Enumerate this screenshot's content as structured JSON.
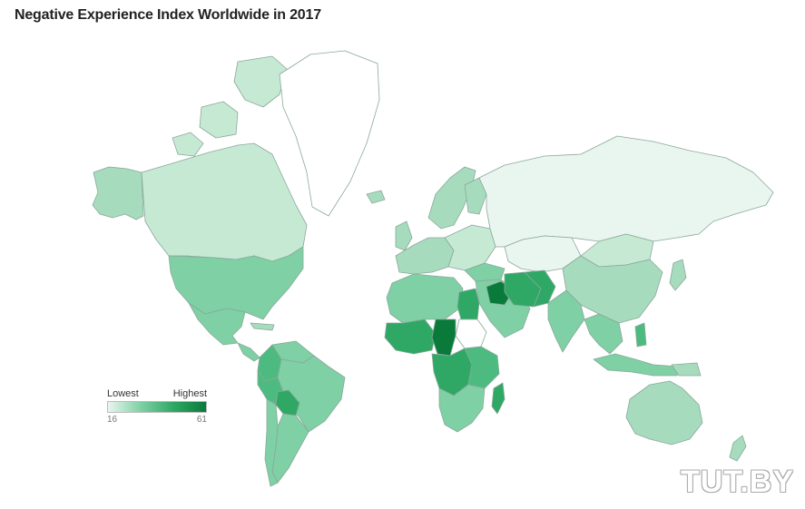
{
  "title": "Negative Experience Index Worldwide in 2017",
  "legend": {
    "low_label": "Lowest",
    "high_label": "Highest",
    "min": "16",
    "max": "61"
  },
  "watermark": "TUT.BY",
  "colors": {
    "lowest": "#e9f6ef",
    "low": "#c6e9d4",
    "mid_low": "#a6dcbd",
    "mid": "#7fd0a4",
    "mid_high": "#4dbb80",
    "high": "#2fa866",
    "highest": "#0a7a3a",
    "no_data": "#ffffff",
    "border": "#8aa89a"
  },
  "regions": [
    {
      "name": "Alaska",
      "level": "mid_low"
    },
    {
      "name": "Canada",
      "level": "low"
    },
    {
      "name": "Greenland",
      "level": "no_data"
    },
    {
      "name": "United States",
      "level": "mid"
    },
    {
      "name": "Mexico",
      "level": "mid"
    },
    {
      "name": "Central America",
      "level": "mid"
    },
    {
      "name": "Colombia",
      "level": "mid_high"
    },
    {
      "name": "Venezuela",
      "level": "mid"
    },
    {
      "name": "Brazil",
      "level": "mid"
    },
    {
      "name": "Peru",
      "level": "mid_high"
    },
    {
      "name": "Bolivia",
      "level": "high"
    },
    {
      "name": "Argentina",
      "level": "mid"
    },
    {
      "name": "Chile",
      "level": "mid"
    },
    {
      "name": "Scandinavia",
      "level": "mid_low"
    },
    {
      "name": "Western Europe",
      "level": "mid_low"
    },
    {
      "name": "Eastern Europe",
      "level": "low"
    },
    {
      "name": "Russia",
      "level": "lowest"
    },
    {
      "name": "Kazakhstan",
      "level": "lowest"
    },
    {
      "name": "China",
      "level": "mid_low"
    },
    {
      "name": "Mongolia",
      "level": "low"
    },
    {
      "name": "Middle East",
      "level": "mid"
    },
    {
      "name": "Iraq",
      "level": "highest"
    },
    {
      "name": "Afghanistan",
      "level": "high"
    },
    {
      "name": "India",
      "level": "mid"
    },
    {
      "name": "Southeast Asia",
      "level": "mid"
    },
    {
      "name": "Indonesia",
      "level": "mid"
    },
    {
      "name": "Australia",
      "level": "mid_low"
    },
    {
      "name": "New Zealand",
      "level": "mid_low"
    },
    {
      "name": "North Africa",
      "level": "mid"
    },
    {
      "name": "Egypt",
      "level": "high"
    },
    {
      "name": "Sudan",
      "level": "no_data"
    },
    {
      "name": "West Africa",
      "level": "high"
    },
    {
      "name": "Chad",
      "level": "highest"
    },
    {
      "name": "Central Africa",
      "level": "high"
    },
    {
      "name": "East Africa",
      "level": "mid_high"
    },
    {
      "name": "Southern Africa",
      "level": "mid"
    },
    {
      "name": "Madagascar",
      "level": "high"
    }
  ]
}
